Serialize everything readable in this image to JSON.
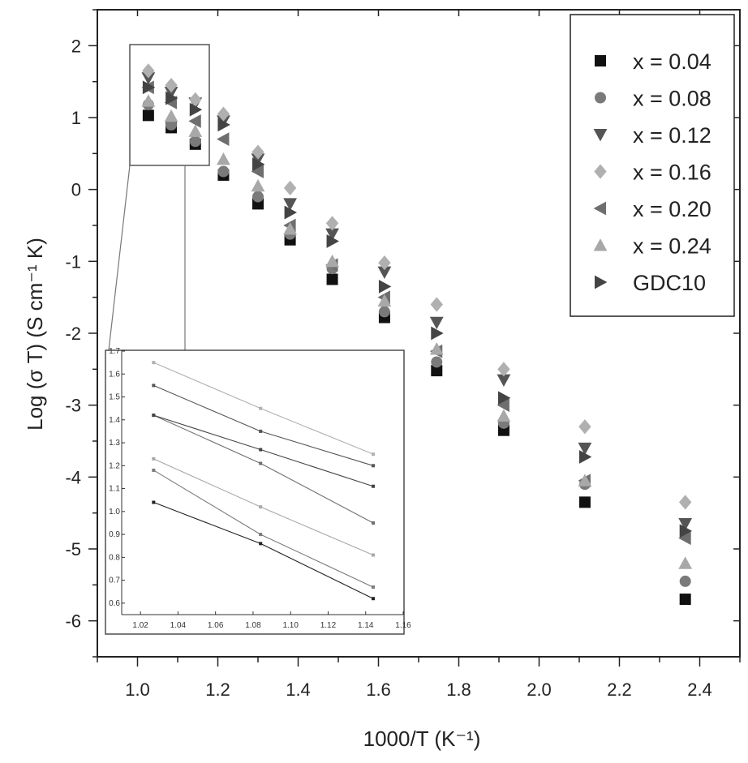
{
  "chart_data": [
    {
      "type": "scatter",
      "title": "",
      "xlabel": "1000/T (K⁻¹)",
      "ylabel": "Log (σ T) (S cm⁻¹ K)",
      "xlim": [
        0.9,
        2.5
      ],
      "ylim": [
        -6.5,
        2.5
      ],
      "xticks": [
        "1.0",
        "1.2",
        "1.4",
        "1.6",
        "1.8",
        "2.0",
        "2.2",
        "2.4"
      ],
      "yticks": [
        "2",
        "1",
        "0",
        "-1",
        "-2",
        "-3",
        "-4",
        "-5",
        "-6"
      ],
      "grid": false,
      "legend_position": "top-right",
      "series": [
        {
          "name": "x = 0.04",
          "marker": "square",
          "color": "#111111",
          "x": [
            1.027,
            1.084,
            1.144,
            1.214,
            1.3,
            1.38,
            1.485,
            1.615,
            1.745,
            1.912,
            2.114,
            2.364
          ],
          "y": [
            1.03,
            0.86,
            0.63,
            0.2,
            -0.2,
            -0.7,
            -1.25,
            -1.78,
            -2.52,
            -3.35,
            -4.35,
            -5.7
          ]
        },
        {
          "name": "x = 0.08",
          "marker": "circle",
          "color": "#7a7a7a",
          "x": [
            1.027,
            1.084,
            1.144,
            1.214,
            1.3,
            1.38,
            1.485,
            1.615,
            1.745,
            1.912,
            2.114,
            2.364
          ],
          "y": [
            1.18,
            0.9,
            0.67,
            0.25,
            -0.1,
            -0.62,
            -1.1,
            -1.7,
            -2.4,
            -3.25,
            -4.1,
            -5.45
          ]
        },
        {
          "name": "x = 0.12",
          "marker": "triangle-down",
          "color": "#555555",
          "x": [
            1.027,
            1.084,
            1.144,
            1.214,
            1.3,
            1.38,
            1.485,
            1.615,
            1.745,
            1.912,
            2.114,
            2.364
          ],
          "y": [
            1.55,
            1.35,
            1.2,
            0.95,
            0.42,
            -0.2,
            -0.62,
            -1.15,
            -1.85,
            -2.65,
            -3.6,
            -4.65
          ]
        },
        {
          "name": "x = 0.16",
          "marker": "diamond",
          "color": "#b0b0b0",
          "x": [
            1.027,
            1.084,
            1.144,
            1.214,
            1.3,
            1.38,
            1.485,
            1.615,
            1.745,
            1.912,
            2.114,
            2.364
          ],
          "y": [
            1.65,
            1.45,
            1.25,
            1.05,
            0.52,
            0.02,
            -0.47,
            -1.02,
            -1.6,
            -2.5,
            -3.3,
            -4.35
          ]
        },
        {
          "name": "x = 0.20",
          "marker": "triangle-left",
          "color": "#6e6e6e",
          "x": [
            1.027,
            1.084,
            1.144,
            1.214,
            1.3,
            1.38,
            1.485,
            1.615,
            1.745,
            1.912,
            2.114,
            2.364
          ],
          "y": [
            1.42,
            1.21,
            0.95,
            0.7,
            0.25,
            -0.5,
            -1.05,
            -1.5,
            -2.25,
            -3.0,
            -4.05,
            -4.85
          ]
        },
        {
          "name": "x = 0.24",
          "marker": "triangle-up",
          "color": "#a8a8a8",
          "x": [
            1.027,
            1.084,
            1.144,
            1.214,
            1.3,
            1.38,
            1.485,
            1.615,
            1.745,
            1.912,
            2.114,
            2.364
          ],
          "y": [
            1.23,
            1.02,
            0.81,
            0.42,
            0.05,
            -0.55,
            -1.0,
            -1.55,
            -2.22,
            -3.15,
            -4.05,
            -5.2
          ]
        },
        {
          "name": "GDC10",
          "marker": "triangle-right",
          "color": "#444444",
          "x": [
            1.027,
            1.084,
            1.144,
            1.214,
            1.3,
            1.38,
            1.485,
            1.615,
            1.745,
            1.912,
            2.114,
            2.364
          ],
          "y": [
            1.42,
            1.27,
            1.11,
            0.9,
            0.35,
            -0.32,
            -0.72,
            -1.35,
            -2.0,
            -2.9,
            -3.72,
            -4.75
          ]
        }
      ]
    },
    {
      "type": "line",
      "title": "",
      "xlim": [
        1.01,
        1.16
      ],
      "ylim": [
        0.55,
        1.7
      ],
      "xticks": [
        "1.02",
        "1.04",
        "1.06",
        "1.08",
        "1.10",
        "1.12",
        "1.14",
        "1.16"
      ],
      "yticks": [
        "1.7",
        "1.6",
        "1.5",
        "1.4",
        "1.3",
        "1.2",
        "1.1",
        "1.0",
        "0.9",
        "0.8",
        "0.7",
        "0.6"
      ],
      "grid": false,
      "series": [
        {
          "name": "x = 0.04",
          "color": "#222222",
          "x": [
            1.027,
            1.084,
            1.144
          ],
          "y": [
            1.04,
            0.86,
            0.62
          ]
        },
        {
          "name": "x = 0.08",
          "color": "#7a7a7a",
          "x": [
            1.027,
            1.084,
            1.144
          ],
          "y": [
            1.18,
            0.9,
            0.67
          ]
        },
        {
          "name": "x = 0.12",
          "color": "#555555",
          "x": [
            1.027,
            1.084,
            1.144
          ],
          "y": [
            1.55,
            1.35,
            1.2
          ]
        },
        {
          "name": "x = 0.16",
          "color": "#b0b0b0",
          "x": [
            1.027,
            1.084,
            1.144
          ],
          "y": [
            1.65,
            1.45,
            1.25
          ]
        },
        {
          "name": "x = 0.20",
          "color": "#6e6e6e",
          "x": [
            1.027,
            1.084,
            1.144
          ],
          "y": [
            1.42,
            1.21,
            0.95
          ]
        },
        {
          "name": "x = 0.24",
          "color": "#a8a8a8",
          "x": [
            1.027,
            1.084,
            1.144
          ],
          "y": [
            1.23,
            1.02,
            0.81
          ]
        },
        {
          "name": "GDC10",
          "color": "#444444",
          "x": [
            1.027,
            1.084,
            1.144
          ],
          "y": [
            1.42,
            1.27,
            1.11
          ]
        }
      ]
    }
  ]
}
